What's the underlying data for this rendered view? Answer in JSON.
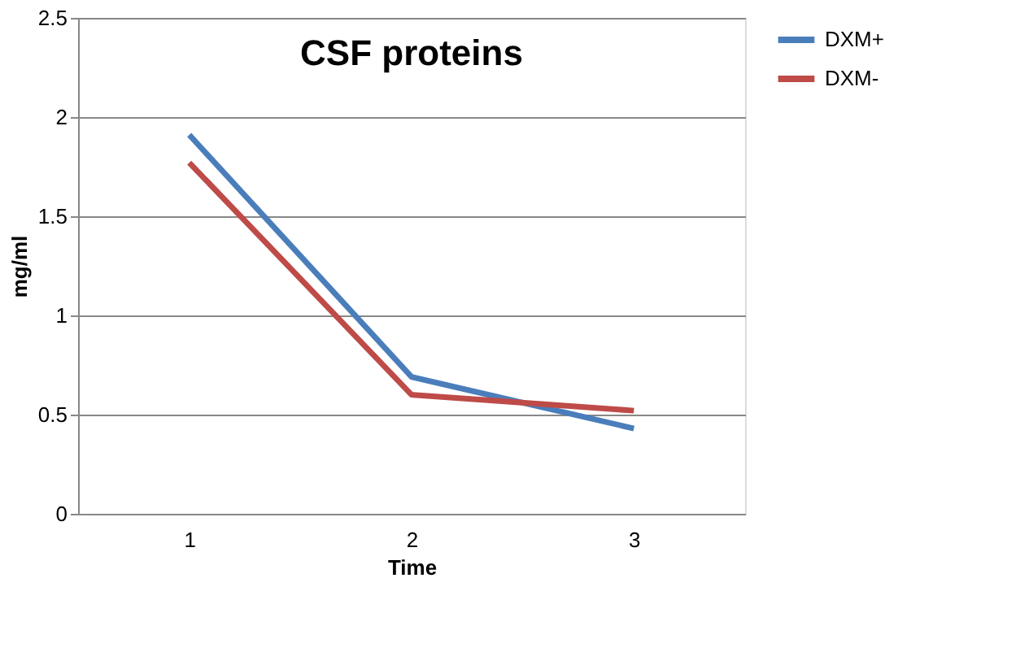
{
  "chart_data": {
    "type": "line",
    "title": "CSF proteins",
    "xlabel": "Time",
    "ylabel": "mg/ml",
    "categories": [
      "1",
      "2",
      "3"
    ],
    "series": [
      {
        "name": "DXM+",
        "color": "#4a7ebb",
        "values": [
          1.91,
          0.69,
          0.43
        ]
      },
      {
        "name": "DXM-",
        "color": "#be4b48",
        "values": [
          1.77,
          0.6,
          0.52
        ]
      }
    ],
    "ylim": [
      0,
      2.5
    ],
    "yticks": [
      0,
      0.5,
      1,
      1.5,
      2,
      2.5
    ],
    "grid": "y",
    "legend": "right",
    "marker": "none",
    "line_style": "solid"
  }
}
